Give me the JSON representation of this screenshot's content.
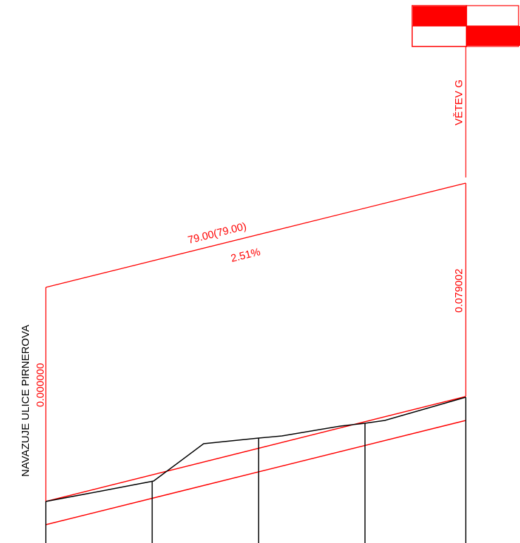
{
  "colors": {
    "design": "#ff0000",
    "terrain": "#000000",
    "background": "#ffffff"
  },
  "labels": {
    "branch": "VĚTEV G",
    "connection": "NAVAZUJE ULICE PIRNEROVA",
    "start_station": "0.000000",
    "end_station": "0.079002",
    "segment_length": "79.00(79.00)",
    "segment_slope": "2.51%"
  },
  "symbol": {
    "type": "checkered-flag",
    "filled_cells": [
      "top-left",
      "bottom-right"
    ]
  }
}
